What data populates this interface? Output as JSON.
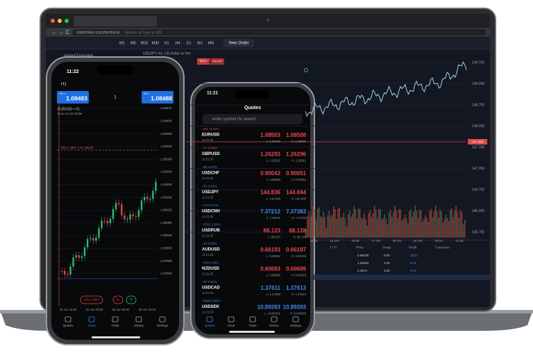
{
  "laptop": {
    "url": "sitebroker.com/terminal",
    "search": "Search or Type a URL",
    "timeframes": [
      "M1",
      "M5",
      "M15",
      "M30",
      "H1",
      "H4",
      "D1",
      "W1",
      "MN"
    ],
    "new_order": "New Order",
    "panel_title": "Instant Execution",
    "symbol_title": "USDJPY, H1, US Dollar vs Yen",
    "sell": "SELL",
    "sell_price": "145.402",
    "buy": "BUY",
    "buy_price": "145.422",
    "price_axis": [
      "149.700",
      "149.200",
      "148.700",
      "148.200",
      "147.700",
      "147.200",
      "146.700",
      "146.200",
      "145.700"
    ],
    "current_price": "147.493",
    "time_axis": [
      "16:15",
      "15 Oct",
      "20:45",
      "17 Oct",
      "18 Oct",
      "19 Oct",
      "20:15",
      "11:30"
    ],
    "table_headers": [
      "T / P",
      "Price",
      "Swap",
      "Profit",
      "Comment"
    ],
    "table_rows": [
      [
        "0.98235",
        "0.00",
        "19.14"
      ],
      [
        "1.08482",
        "0.00",
        "8.11"
      ],
      [
        "2.4572",
        "0.00",
        "3.73"
      ]
    ]
  },
  "left_phone": {
    "time": "11:22",
    "timeframe": "H1",
    "lots": "1",
    "sell": "SELL",
    "sell_price": "1.08483",
    "buy": "BUY",
    "buy_price": "1.08488",
    "symbol": "EURUSD • H1",
    "description": "Euro vs US Dollar",
    "limit_line": "SELL LIMIT 1 at 1.08330",
    "price_axis": [
      "1.08440",
      "1.08400",
      "1.08360",
      "1.08320",
      "1.08280",
      "1.08240",
      "1.08200",
      "1.08160",
      "1.08120",
      "1.08080",
      "1.08040",
      "1.08000",
      "1.07960",
      "1.07920"
    ],
    "time_axis": [
      "23 Jun 11:00",
      "26 Jun 03:00",
      "28 Jun 06:00",
      "29 Jun 23:00"
    ],
    "buttons": [
      "SELL LIMIT",
      "SL",
      "TP"
    ],
    "tabs": [
      "Quotes",
      "Chart",
      "Trade",
      "History",
      "Settings"
    ]
  },
  "right_phone": {
    "time": "11:21",
    "title": "Quotes",
    "search": "enter symbol for search",
    "quotes": [
      {
        "change": "-161 -0.16%",
        "symbol": "EURUSD",
        "time": "11:21:33",
        "bid": "1.08503",
        "ask": "1.08508",
        "low": "L: 1.08491",
        "high": "H: 1.08930",
        "color": "#f0454b"
      },
      {
        "change": "-74 -0.06%",
        "symbol": "GBPUSD",
        "time": "11:21:33",
        "bid": "1.26293",
        "ask": "1.26296",
        "low": "L: 1.26131",
        "high": "H: 1.26611",
        "color": "#f0454b"
      },
      {
        "change": "+66 0.07%",
        "symbol": "USDCHF",
        "time": "11:21:32",
        "bid": "0.90043",
        "ask": "0.90051",
        "low": "L: 0.89963",
        "high": "H: 0.90051",
        "color": "#f0454b"
      },
      {
        "change": "+51 0.04%",
        "symbol": "USDJPY",
        "time": "11:21:33",
        "bid": "144.836",
        "ask": "144.844",
        "low": "L: 144.688",
        "high": "H: 145.088",
        "color": "#f0454b"
      },
      {
        "change": "+475 0.07%",
        "symbol": "USDCNH",
        "time": "11:21:33",
        "bid": "7.37212",
        "ask": "7.37383",
        "low": "L: 7.29071",
        "high": "H: 7.37202",
        "color": "#3d8bf5"
      },
      {
        "change": "+2022 2.63%",
        "symbol": "USDRUB",
        "time": "11:21:33",
        "bid": "88.123",
        "ask": "88.128",
        "low": "L: 88.023",
        "high": "H: 88.128",
        "color": "#f0454b"
      },
      {
        "change": "+22 0.03%",
        "symbol": "AUDUSD",
        "time": "11:21:33",
        "bid": "0.66193",
        "ask": "0.66197",
        "low": "L: 0.66034",
        "high": "H: 0.66203",
        "color": "#f0454b"
      },
      {
        "change": "+166 0.26%",
        "symbol": "NZDUSD",
        "time": "11:21:33",
        "bid": "0.60683",
        "ask": "0.60689",
        "low": "L: 0.60598",
        "high": "H: 0.60923",
        "color": "#f0454b"
      },
      {
        "change": "+67 0.05%",
        "symbol": "USDCAD",
        "time": "11:21:33",
        "bid": "1.37611",
        "ask": "1.37613",
        "low": "L: 1.37384",
        "high": "H: 1.37624",
        "color": "#3d8bf5"
      },
      {
        "change": "+3908 0.36%",
        "symbol": "USDSEK",
        "time": "11:21:33",
        "bid": "10.89283",
        "ask": "10.89393",
        "low": "L: 10.85102",
        "high": "H: 10.89393",
        "color": "#3d8bf5"
      }
    ],
    "tabs": [
      "Quotes",
      "Chart",
      "Trade",
      "History",
      "Settings"
    ]
  }
}
